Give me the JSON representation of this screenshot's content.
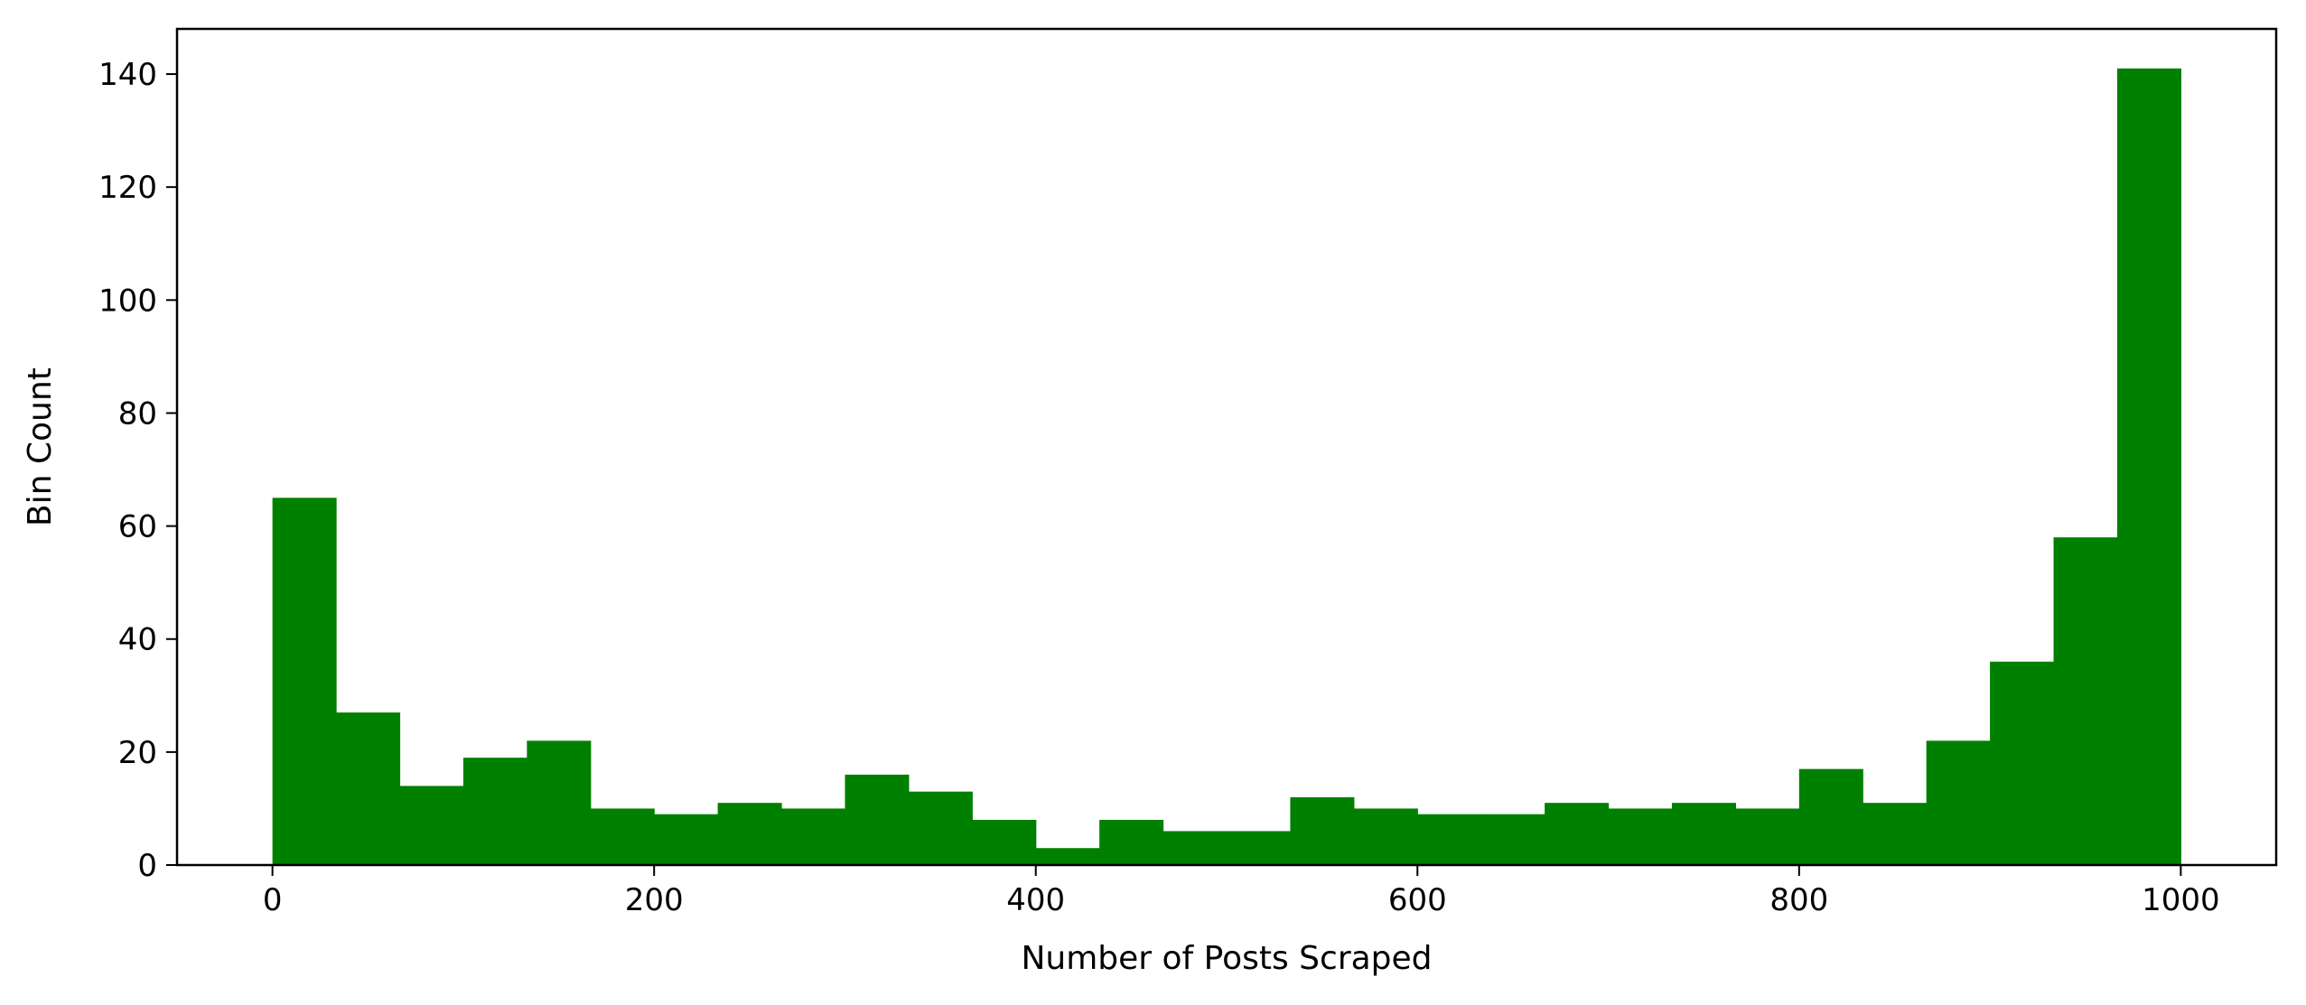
{
  "chart_data": {
    "type": "bar",
    "subtype": "histogram",
    "title": "",
    "xlabel": "Number of Posts Scraped",
    "ylabel": "Bin Count",
    "bin_width": 33.33,
    "bin_edges": [
      0,
      33.33,
      66.67,
      100,
      133.33,
      166.67,
      200,
      233.33,
      266.67,
      300,
      333.33,
      366.67,
      400,
      433.33,
      466.67,
      500,
      533.33,
      566.67,
      600,
      633.33,
      666.67,
      700,
      733.33,
      766.67,
      800,
      833.33,
      866.67,
      900,
      933.33,
      966.67,
      1000
    ],
    "values": [
      65,
      27,
      14,
      19,
      22,
      10,
      9,
      11,
      10,
      16,
      13,
      8,
      3,
      8,
      6,
      6,
      12,
      10,
      9,
      9,
      11,
      10,
      11,
      10,
      17,
      11,
      22,
      36,
      58,
      141
    ],
    "xlim": [
      -50,
      1050
    ],
    "ylim": [
      0,
      148
    ],
    "xticks": [
      0,
      200,
      400,
      600,
      800,
      1000
    ],
    "yticks": [
      0,
      20,
      40,
      60,
      80,
      100,
      120,
      140
    ],
    "bar_color": "#008000",
    "grid": false,
    "legend": "none"
  }
}
